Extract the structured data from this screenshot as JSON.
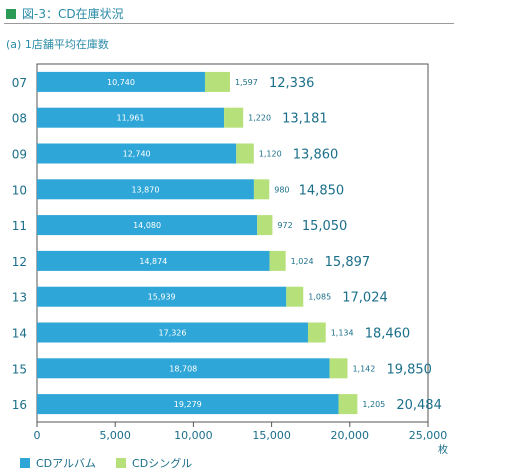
{
  "header": {
    "title": "図-3：CD在庫状況",
    "subtitle": "(a) 1店舗平均在庫数"
  },
  "colors": {
    "album": "#2fa6d8",
    "single": "#b6e079",
    "text": "#1b6f8a"
  },
  "chart_data": {
    "type": "bar",
    "orientation": "horizontal",
    "stacked": true,
    "categories": [
      "07",
      "08",
      "09",
      "10",
      "11",
      "12",
      "13",
      "14",
      "15",
      "16"
    ],
    "series": [
      {
        "name": "CDアルバム",
        "values": [
          10740,
          11961,
          12740,
          13870,
          14080,
          14874,
          15939,
          17326,
          18708,
          19279
        ]
      },
      {
        "name": "CDシングル",
        "values": [
          1597,
          1220,
          1120,
          980,
          972,
          1024,
          1085,
          1134,
          1142,
          1205
        ]
      }
    ],
    "totals": [
      12336,
      13181,
      13860,
      14850,
      15050,
      15897,
      17024,
      18460,
      19850,
      20484
    ],
    "album_labels": [
      "10,740",
      "11,961",
      "12,740",
      "13,870",
      "14,080",
      "14,874",
      "15,939",
      "17,326",
      "18,708",
      "19,279"
    ],
    "single_labels": [
      "1,597",
      "1,220",
      "1,120",
      "980",
      "972",
      "1,024",
      "1,085",
      "1,134",
      "1,142",
      "1,205"
    ],
    "total_labels": [
      "12,336",
      "13,181",
      "13,860",
      "14,850",
      "15,050",
      "15,897",
      "17,024",
      "18,460",
      "19,850",
      "20,484"
    ],
    "xlim": [
      0,
      25000
    ],
    "xticks": [
      0,
      5000,
      10000,
      15000,
      20000,
      25000
    ],
    "xtick_labels": [
      "0",
      "5,000",
      "10,000",
      "15,000",
      "20,000",
      "25,000"
    ],
    "xunit": "枚",
    "legend": "bottom-left",
    "grid": false
  }
}
